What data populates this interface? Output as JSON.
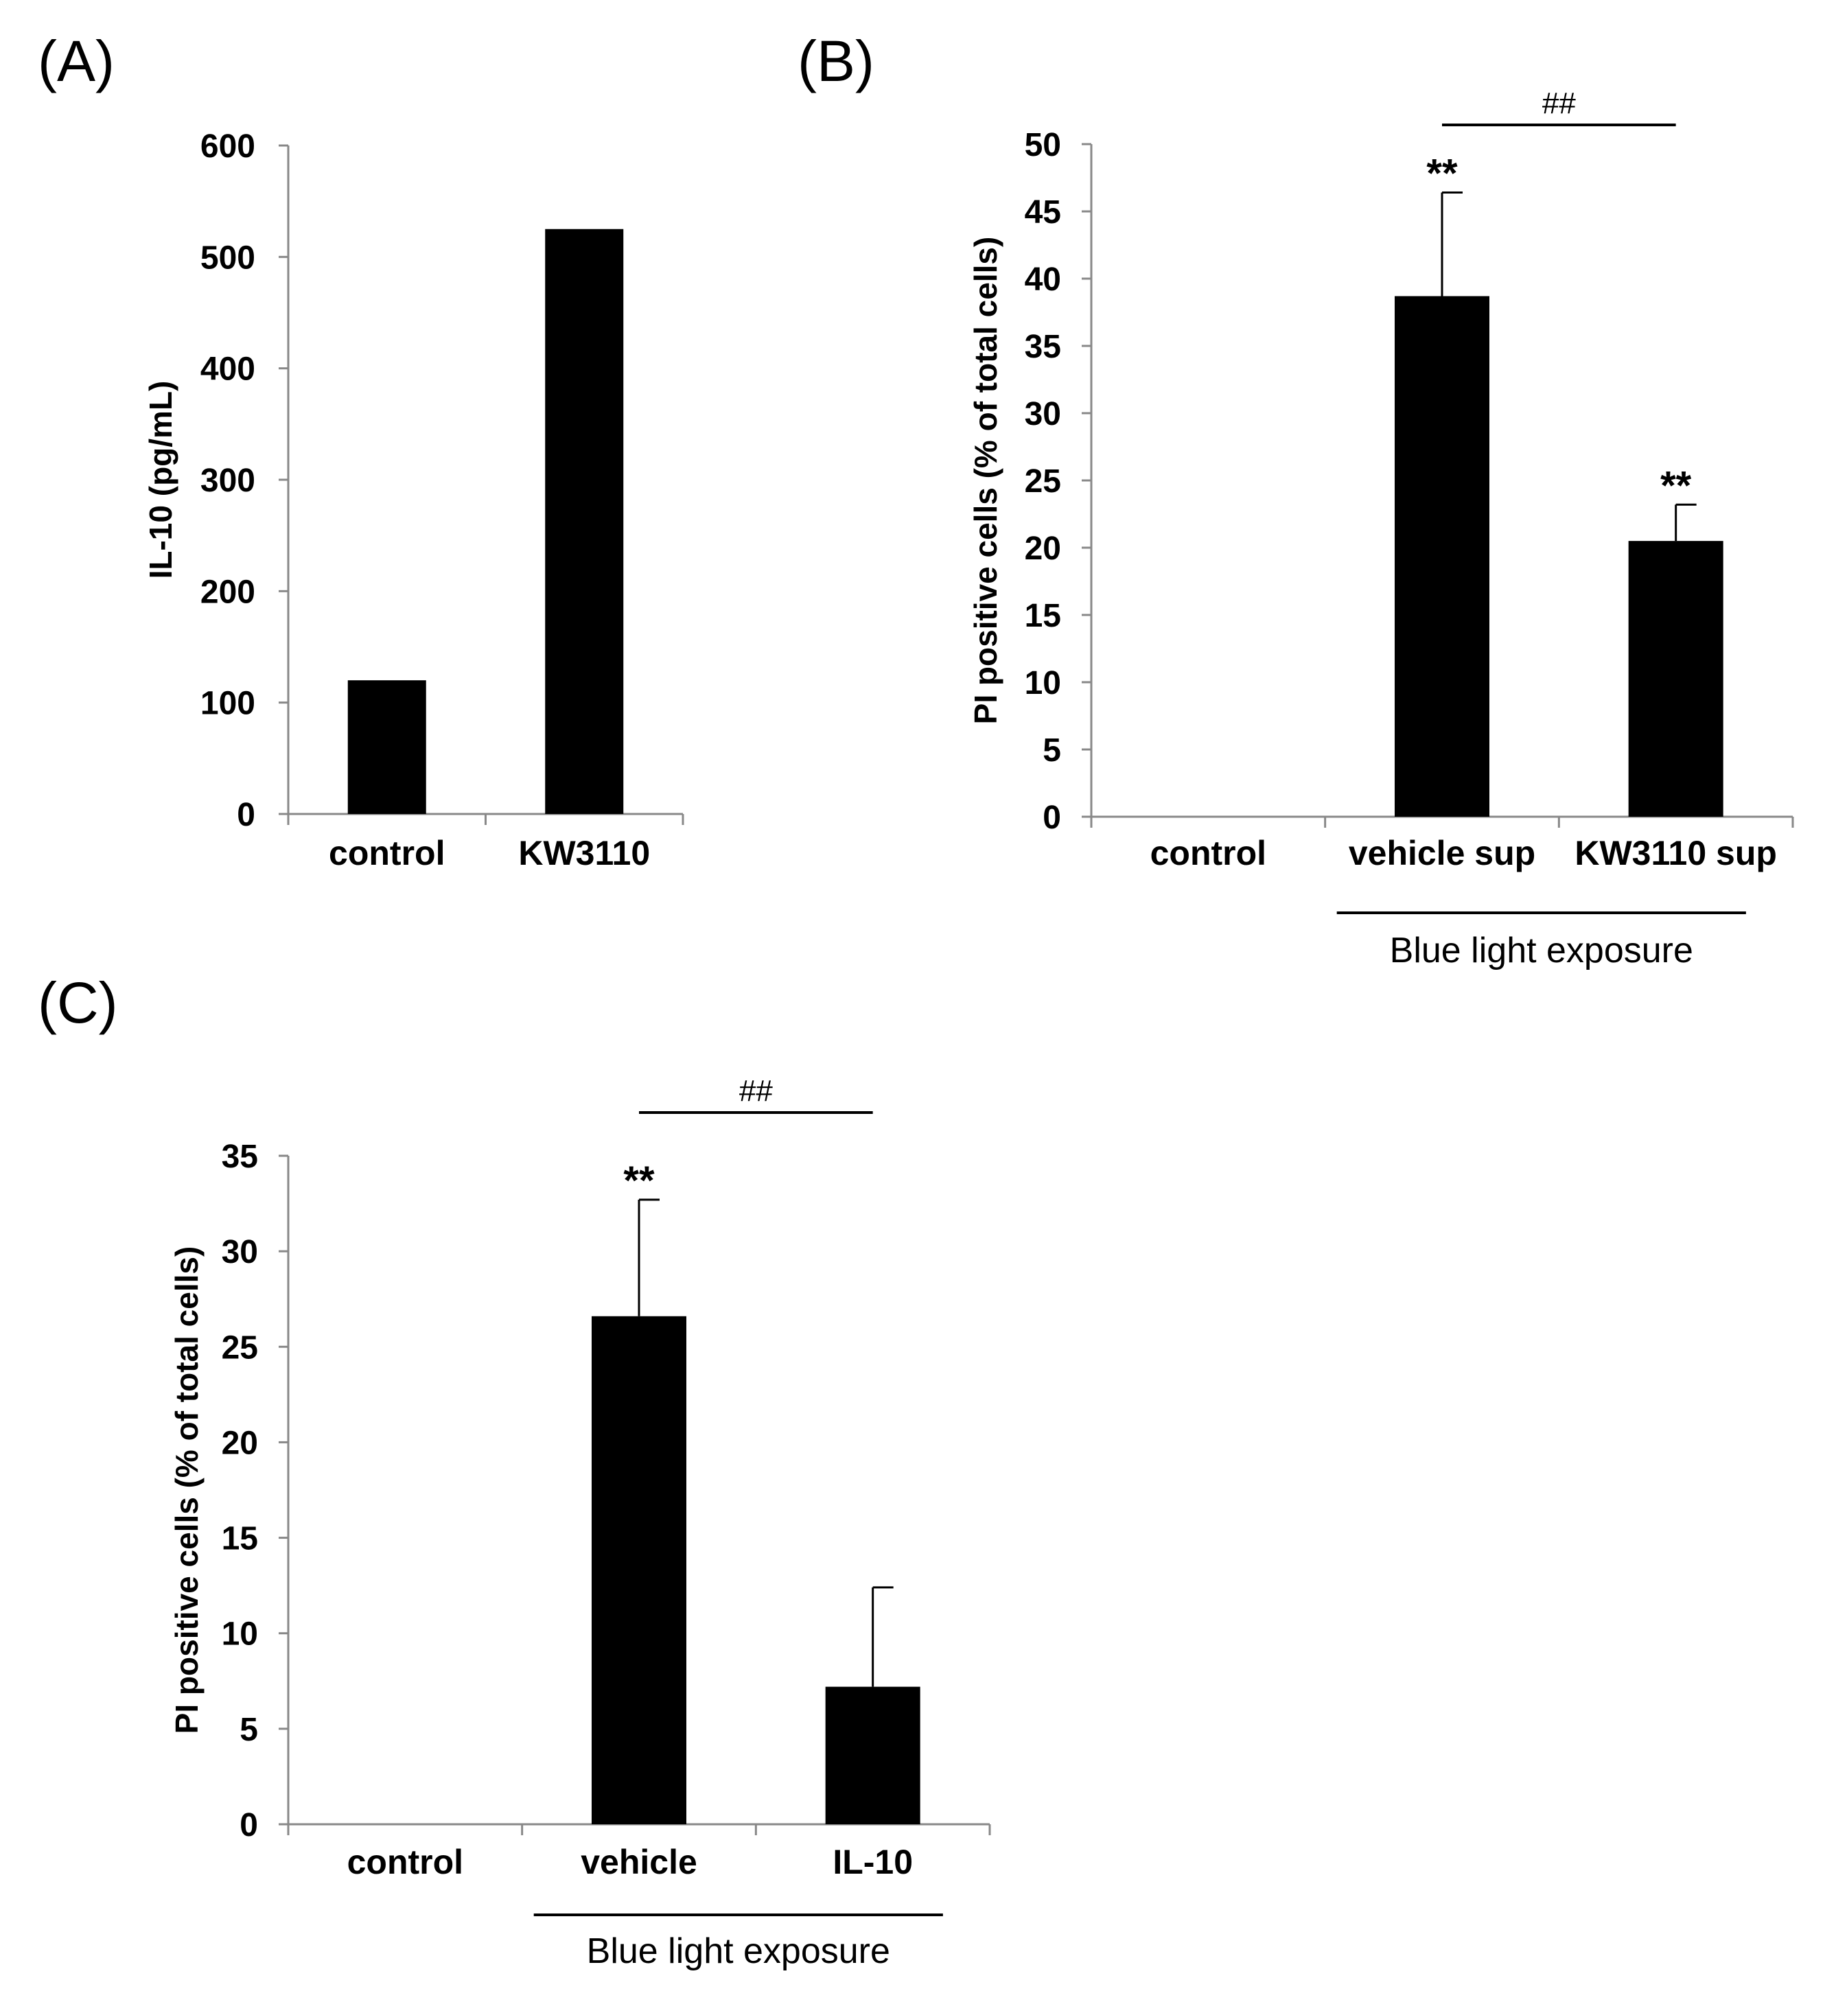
{
  "colors": {
    "bar": "#000000",
    "axis": "#888888",
    "background": "#ffffff"
  },
  "chart_data": [
    {
      "id": "A",
      "panel_label": "(A)",
      "type": "bar",
      "categories": [
        "control",
        "KW3110"
      ],
      "values": [
        120,
        525
      ],
      "errors": [
        null,
        null
      ],
      "significance": [
        "",
        ""
      ],
      "title": "",
      "xlabel": "",
      "ylabel": "IL-10 (pg/mL)",
      "ylim": [
        0,
        600
      ],
      "yticks": [
        0,
        100,
        200,
        300,
        400,
        500,
        600
      ],
      "grid": false,
      "group": null,
      "comparison": null
    },
    {
      "id": "B",
      "panel_label": "(B)",
      "type": "bar",
      "categories": [
        "control",
        "vehicle sup",
        "KW3110 sup"
      ],
      "values": [
        0,
        38.7,
        20.5
      ],
      "errors": [
        null,
        7.7,
        2.7
      ],
      "significance": [
        "",
        "**",
        "**"
      ],
      "title": "",
      "xlabel": "",
      "ylabel": "PI positive cells (% of total cells)",
      "ylim": [
        0,
        50
      ],
      "yticks": [
        0,
        5,
        10,
        15,
        20,
        25,
        30,
        35,
        40,
        45,
        50
      ],
      "grid": false,
      "group": {
        "label": "Blue light exposure",
        "from": 1,
        "to": 2
      },
      "comparison": {
        "label": "##",
        "from": 1,
        "to": 2
      }
    },
    {
      "id": "C",
      "panel_label": "(C)",
      "type": "bar",
      "categories": [
        "control",
        "vehicle",
        "IL-10"
      ],
      "values": [
        0,
        26.6,
        7.2
      ],
      "errors": [
        null,
        6.1,
        5.2
      ],
      "significance": [
        "",
        "**",
        ""
      ],
      "title": "",
      "xlabel": "",
      "ylabel": "PI positive cells (% of total cells)",
      "ylim": [
        0,
        35
      ],
      "yticks": [
        0,
        5,
        10,
        15,
        20,
        25,
        30,
        35
      ],
      "grid": false,
      "group": {
        "label": "Blue light exposure",
        "from": 1,
        "to": 2
      },
      "comparison": {
        "label": "##",
        "from": 1,
        "to": 2
      }
    }
  ]
}
